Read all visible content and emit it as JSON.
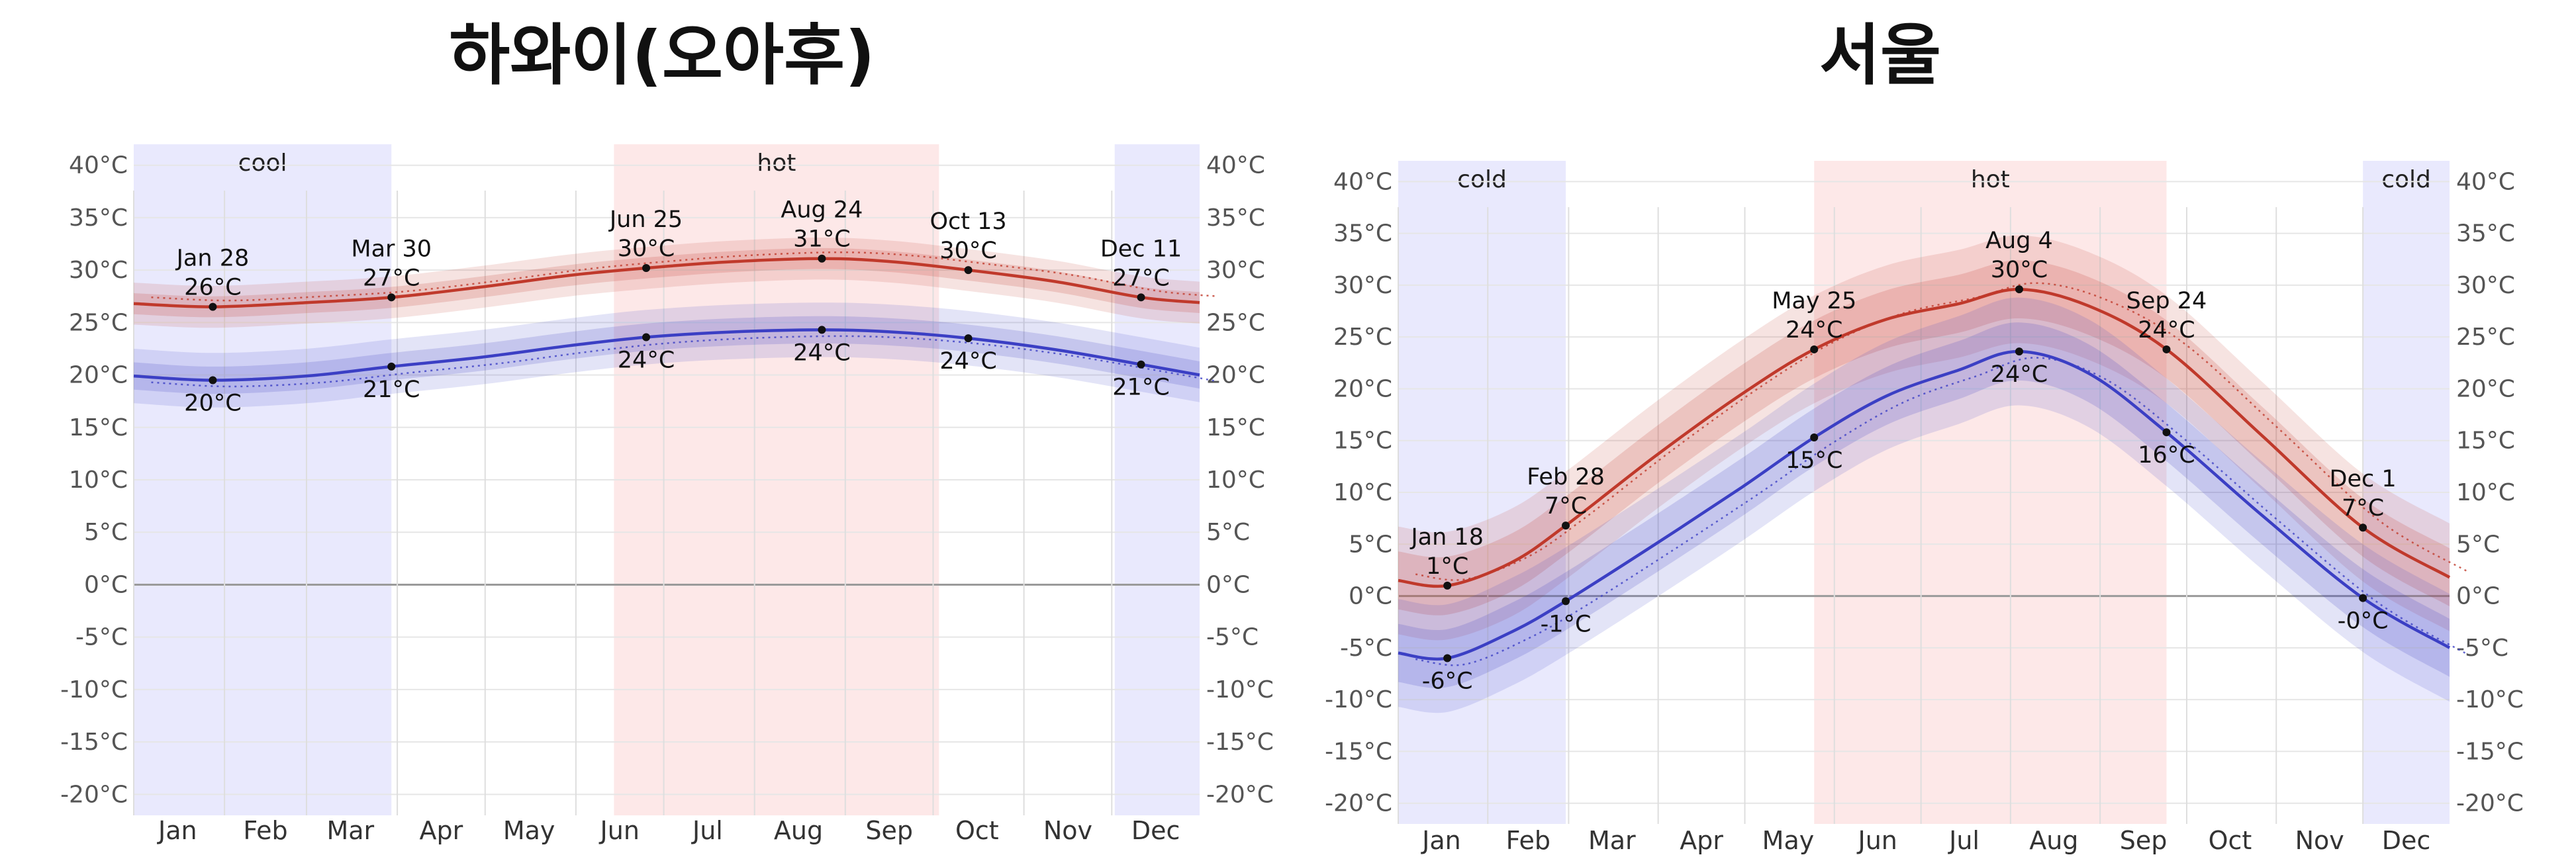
{
  "chart_data": [
    {
      "type": "line",
      "title": "하와이(오아후)",
      "x_unit": "day of year",
      "xlim": [
        1,
        365
      ],
      "ylim": [
        -22,
        42
      ],
      "yticks": [
        -20,
        -15,
        -10,
        -5,
        0,
        5,
        10,
        15,
        20,
        25,
        30,
        35,
        40
      ],
      "ytick_labels": [
        "-20°C",
        "-15°C",
        "-10°C",
        "-5°C",
        "0°C",
        "5°C",
        "10°C",
        "15°C",
        "20°C",
        "25°C",
        "30°C",
        "35°C",
        "40°C"
      ],
      "months": [
        "Jan",
        "Feb",
        "Mar",
        "Apr",
        "May",
        "Jun",
        "Jul",
        "Aug",
        "Sep",
        "Oct",
        "Nov",
        "Dec"
      ],
      "seasons": [
        {
          "label": "cool",
          "start": 1,
          "end": 89,
          "kind": "cool"
        },
        {
          "label": "hot",
          "start": 165,
          "end": 276,
          "kind": "hot"
        },
        {
          "label": "",
          "start": 336,
          "end": 365,
          "kind": "cool"
        }
      ],
      "series": [
        {
          "name": "high",
          "color": "#c0392b",
          "x": [
            1,
            28,
            60,
            89,
            120,
            150,
            176,
            205,
            236,
            260,
            286,
            316,
            345,
            365
          ],
          "y": [
            26.8,
            26.5,
            26.9,
            27.4,
            28.4,
            29.5,
            30.2,
            30.8,
            31.1,
            30.8,
            30.0,
            28.9,
            27.4,
            26.9
          ],
          "band_inner": 1.0,
          "band_outer": 2.0
        },
        {
          "name": "low",
          "color": "#3b3fc4",
          "x": [
            1,
            28,
            60,
            89,
            120,
            150,
            176,
            205,
            236,
            260,
            286,
            316,
            345,
            365
          ],
          "y": [
            19.9,
            19.5,
            19.9,
            20.8,
            21.7,
            22.8,
            23.6,
            24.1,
            24.3,
            24.1,
            23.5,
            22.4,
            21.0,
            20.0
          ],
          "band_inner": 1.3,
          "band_outer": 2.6
        }
      ],
      "annotations": [
        {
          "date": "Jan 28",
          "value": "26°C",
          "x": 28,
          "y": 26.5,
          "pos": "above"
        },
        {
          "date": "",
          "value": "20°C",
          "x": 28,
          "y": 19.5,
          "pos": "below"
        },
        {
          "date": "Mar 30",
          "value": "27°C",
          "x": 89,
          "y": 27.4,
          "pos": "above"
        },
        {
          "date": "",
          "value": "21°C",
          "x": 89,
          "y": 20.8,
          "pos": "below"
        },
        {
          "date": "Jun 25",
          "value": "30°C",
          "x": 176,
          "y": 30.2,
          "pos": "above"
        },
        {
          "date": "",
          "value": "24°C",
          "x": 176,
          "y": 23.6,
          "pos": "below"
        },
        {
          "date": "Aug 24",
          "value": "31°C",
          "x": 236,
          "y": 31.1,
          "pos": "above"
        },
        {
          "date": "",
          "value": "24°C",
          "x": 236,
          "y": 24.3,
          "pos": "below"
        },
        {
          "date": "Oct 13",
          "value": "30°C",
          "x": 286,
          "y": 30.0,
          "pos": "above"
        },
        {
          "date": "",
          "value": "24°C",
          "x": 286,
          "y": 23.5,
          "pos": "below"
        },
        {
          "date": "Dec 11",
          "value": "27°C",
          "x": 345,
          "y": 27.4,
          "pos": "above"
        },
        {
          "date": "",
          "value": "21°C",
          "x": 345,
          "y": 21.0,
          "pos": "below"
        }
      ]
    },
    {
      "type": "line",
      "title": "서울",
      "x_unit": "day of year",
      "xlim": [
        1,
        365
      ],
      "ylim": [
        -22,
        42
      ],
      "yticks": [
        -20,
        -15,
        -10,
        -5,
        0,
        5,
        10,
        15,
        20,
        25,
        30,
        35,
        40
      ],
      "ytick_labels": [
        "-20°C",
        "-15°C",
        "-10°C",
        "-5°C",
        "0°C",
        "5°C",
        "10°C",
        "15°C",
        "20°C",
        "25°C",
        "30°C",
        "35°C",
        "40°C"
      ],
      "months": [
        "Jan",
        "Feb",
        "Mar",
        "Apr",
        "May",
        "Jun",
        "Jul",
        "Aug",
        "Sep",
        "Oct",
        "Nov",
        "Dec"
      ],
      "seasons": [
        {
          "label": "cold",
          "start": 1,
          "end": 59,
          "kind": "cool"
        },
        {
          "label": "hot",
          "start": 145,
          "end": 267,
          "kind": "hot"
        },
        {
          "label": "cold",
          "start": 335,
          "end": 365,
          "kind": "cool"
        }
      ],
      "series": [
        {
          "name": "high",
          "color": "#c0392b",
          "x": [
            1,
            18,
            40,
            59,
            90,
            120,
            145,
            170,
            195,
            216,
            240,
            267,
            300,
            335,
            365
          ],
          "y": [
            1.5,
            1.0,
            3.2,
            6.8,
            13.5,
            19.5,
            23.8,
            26.7,
            28.2,
            29.6,
            28.0,
            23.8,
            15.5,
            6.6,
            1.8
          ],
          "band_inner": 2.8,
          "band_outer": 5.2
        },
        {
          "name": "low",
          "color": "#3b3fc4",
          "x": [
            1,
            18,
            40,
            59,
            90,
            120,
            145,
            170,
            195,
            216,
            240,
            267,
            300,
            335,
            365
          ],
          "y": [
            -5.5,
            -6.0,
            -3.5,
            -0.5,
            5.0,
            10.5,
            15.3,
            19.3,
            21.8,
            23.6,
            21.5,
            15.8,
            7.8,
            -0.2,
            -5.0
          ],
          "band_inner": 2.8,
          "band_outer": 5.2
        }
      ],
      "annotations": [
        {
          "date": "Jan 18",
          "value": "1°C",
          "x": 18,
          "y": 1.0,
          "pos": "above"
        },
        {
          "date": "",
          "value": "-6°C",
          "x": 18,
          "y": -6.0,
          "pos": "below"
        },
        {
          "date": "Feb 28",
          "value": "7°C",
          "x": 59,
          "y": 6.8,
          "pos": "above"
        },
        {
          "date": "",
          "value": "-1°C",
          "x": 59,
          "y": -0.5,
          "pos": "below"
        },
        {
          "date": "May 25",
          "value": "24°C",
          "x": 145,
          "y": 23.8,
          "pos": "above"
        },
        {
          "date": "",
          "value": "15°C",
          "x": 145,
          "y": 15.3,
          "pos": "below"
        },
        {
          "date": "Aug 4",
          "value": "30°C",
          "x": 216,
          "y": 29.6,
          "pos": "above"
        },
        {
          "date": "",
          "value": "24°C",
          "x": 216,
          "y": 23.6,
          "pos": "below"
        },
        {
          "date": "Sep 24",
          "value": "24°C",
          "x": 267,
          "y": 23.8,
          "pos": "above"
        },
        {
          "date": "",
          "value": "16°C",
          "x": 267,
          "y": 15.8,
          "pos": "below"
        },
        {
          "date": "Dec 1",
          "value": "7°C",
          "x": 335,
          "y": 6.6,
          "pos": "above"
        },
        {
          "date": "",
          "value": "-0°C",
          "x": 335,
          "y": -0.2,
          "pos": "below"
        }
      ]
    }
  ],
  "colors": {
    "hot_band": "#fde8e8",
    "cool_band": "#e9e9fd",
    "high_line": "#c0392b",
    "low_line": "#3b3fc4",
    "grid": "#e6e6e6",
    "zero_line": "#9a9a9a"
  }
}
